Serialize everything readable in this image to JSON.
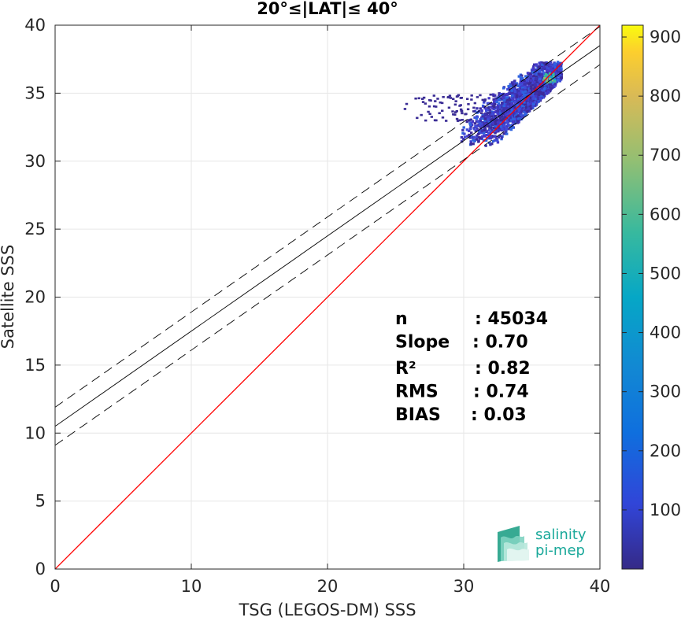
{
  "chart_data": {
    "type": "scatter",
    "title": "20°≤|LAT|≤ 40°",
    "xlabel": "TSG (LEGOS-DM) SSS",
    "ylabel": "Satellite SSS",
    "xlim": [
      0,
      40
    ],
    "ylim": [
      0,
      40
    ],
    "x_ticks": [
      "0",
      "10",
      "20",
      "30",
      "40"
    ],
    "y_ticks": [
      "0",
      "5",
      "10",
      "15",
      "20",
      "25",
      "30",
      "35",
      "40"
    ],
    "grid": true,
    "density_cloud": {
      "x_range": [
        29.5,
        37.1
      ],
      "y_range": [
        31.2,
        37.4
      ],
      "center": [
        36.2,
        36.2
      ],
      "outlier_tail_x": [
        25.0,
        30.0
      ],
      "outlier_tail_y": [
        33.0,
        35.0
      ]
    },
    "lines": [
      {
        "name": "identity",
        "style": "solid",
        "color": "#ff0000",
        "intercept": 0,
        "slope": 1
      },
      {
        "name": "fit",
        "style": "solid",
        "color": "#000000",
        "intercept": 10.5,
        "slope": 0.7
      },
      {
        "name": "fit_upper",
        "style": "dashed",
        "color": "#000000",
        "intercept": 11.9,
        "slope": 0.7
      },
      {
        "name": "fit_lower",
        "style": "dashed",
        "color": "#000000",
        "intercept": 9.1,
        "slope": 0.7
      }
    ],
    "colorbar": {
      "min": 0,
      "max": 920,
      "ticks": [
        "100",
        "200",
        "300",
        "400",
        "500",
        "600",
        "700",
        "800",
        "900"
      ],
      "tick_values": [
        100,
        200,
        300,
        400,
        500,
        600,
        700,
        800,
        900
      ],
      "colormap": "parula"
    },
    "stats": [
      {
        "label": "n",
        "value": ": 45034"
      },
      {
        "label": "Slope",
        "value": ": 0.70"
      },
      {
        "label": "R²",
        "value": ": 0.82"
      },
      {
        "label": "RMS",
        "value": ": 0.74"
      },
      {
        "label": "BIAS",
        "value": ": 0.03"
      }
    ]
  },
  "logo": {
    "line1": "salinity",
    "line2": "pi-mep"
  }
}
